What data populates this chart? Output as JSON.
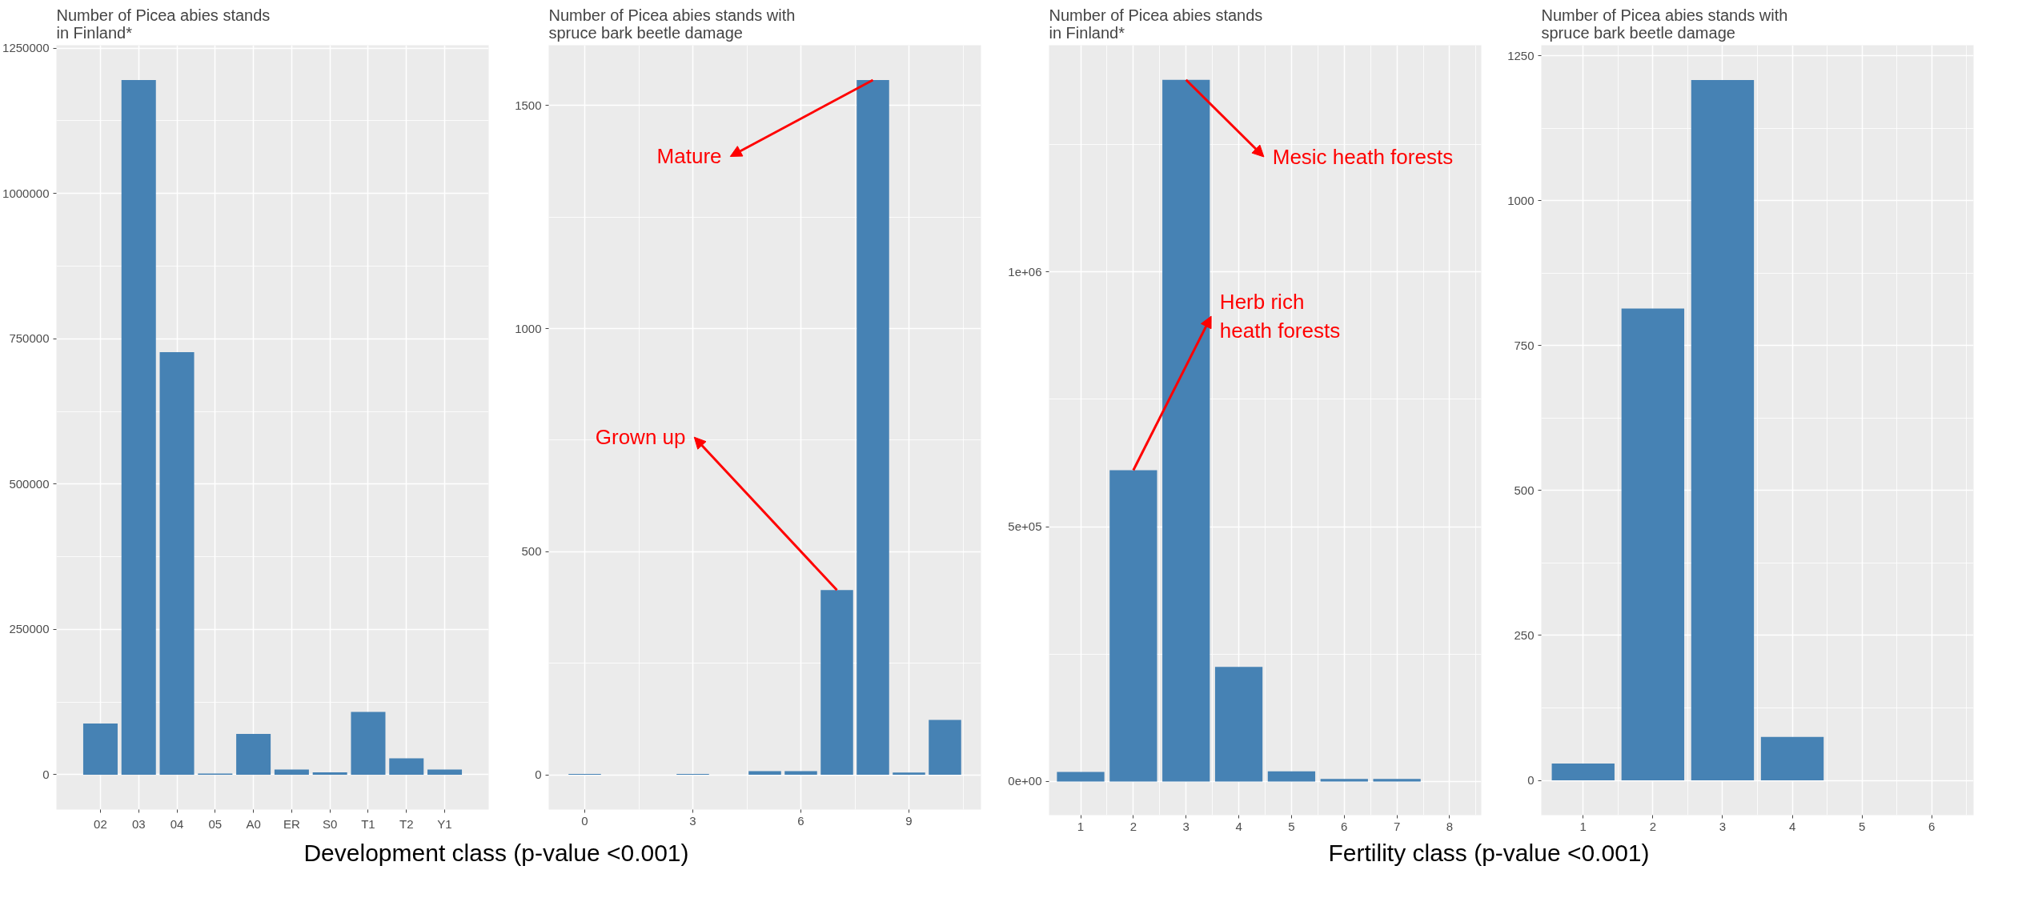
{
  "chart_data": [
    {
      "type": "bar",
      "title": "Number of Picea abies stands\n in Finland*",
      "categories": [
        "02",
        "03",
        "04",
        "05",
        "A0",
        "ER",
        "S0",
        "T1",
        "T2",
        "Y1"
      ],
      "values": [
        88000,
        1195000,
        727000,
        2000,
        70000,
        9000,
        4000,
        108000,
        28000,
        9000
      ],
      "color": "#4682b4",
      "ylim": [
        -60000,
        1255000
      ],
      "yticks": [
        0,
        250000,
        500000,
        750000,
        1000000,
        1250000
      ],
      "grid": true
    },
    {
      "type": "bar",
      "title": "Number of Picea abies stands with\n spruce bark beetle damage",
      "x": [
        0,
        3,
        5,
        6,
        7,
        8,
        9,
        10
      ],
      "values": [
        2,
        2,
        8,
        8,
        414,
        1557,
        5,
        123
      ],
      "color": "#4682b4",
      "xlim": [
        -1.0,
        11.0
      ],
      "xticks": [
        0,
        3,
        6,
        9
      ],
      "ylim": [
        -78,
        1635
      ],
      "yticks": [
        0,
        500,
        1000,
        1500
      ],
      "grid": true,
      "annotations": [
        {
          "text": "Mature",
          "x": 8,
          "y": 1557
        },
        {
          "text": "Grown up",
          "x": 7,
          "y": 414
        },
        "Development class (p-value <0.001)"
      ]
    },
    {
      "type": "bar",
      "title": "Number of Picea abies stands\n in Finland*",
      "x": [
        1,
        2,
        3,
        4,
        5,
        6,
        7,
        8
      ],
      "values": [
        19000,
        611000,
        1377000,
        225000,
        20000,
        5000,
        5000,
        0
      ],
      "color": "#4682b4",
      "xlim": [
        0.4,
        8.6
      ],
      "xticks": [
        1,
        2,
        3,
        4,
        5,
        6,
        7,
        8
      ],
      "ylim": [
        -66000,
        1445000
      ],
      "yticks": [
        {
          "value": 0,
          "label": "0e+00"
        },
        {
          "value": 500000,
          "label": "5e+05"
        },
        {
          "value": 1000000,
          "label": "1e+06"
        }
      ],
      "grid": true,
      "annotations": [
        {
          "text": "Mesic heath forests",
          "x": 3,
          "y": 1377000
        },
        {
          "text": "Herb rich\nheath forests",
          "x": 2,
          "y": 611000
        }
      ]
    },
    {
      "type": "bar",
      "title": "Number of Picea abies stands with\n spruce bark beetle damage",
      "x": [
        1,
        2,
        3,
        4,
        5,
        6
      ],
      "values": [
        29,
        814,
        1208,
        75,
        0,
        0
      ],
      "color": "#4682b4",
      "xlim": [
        0.4,
        6.6
      ],
      "xticks": [
        1,
        2,
        3,
        4,
        5,
        6
      ],
      "ylim": [
        -60,
        1268
      ],
      "yticks": [
        0,
        250,
        500,
        750,
        1000,
        1250
      ],
      "grid": true,
      "annotations": [
        "Fertility class (p-value <0.001)"
      ]
    }
  ]
}
